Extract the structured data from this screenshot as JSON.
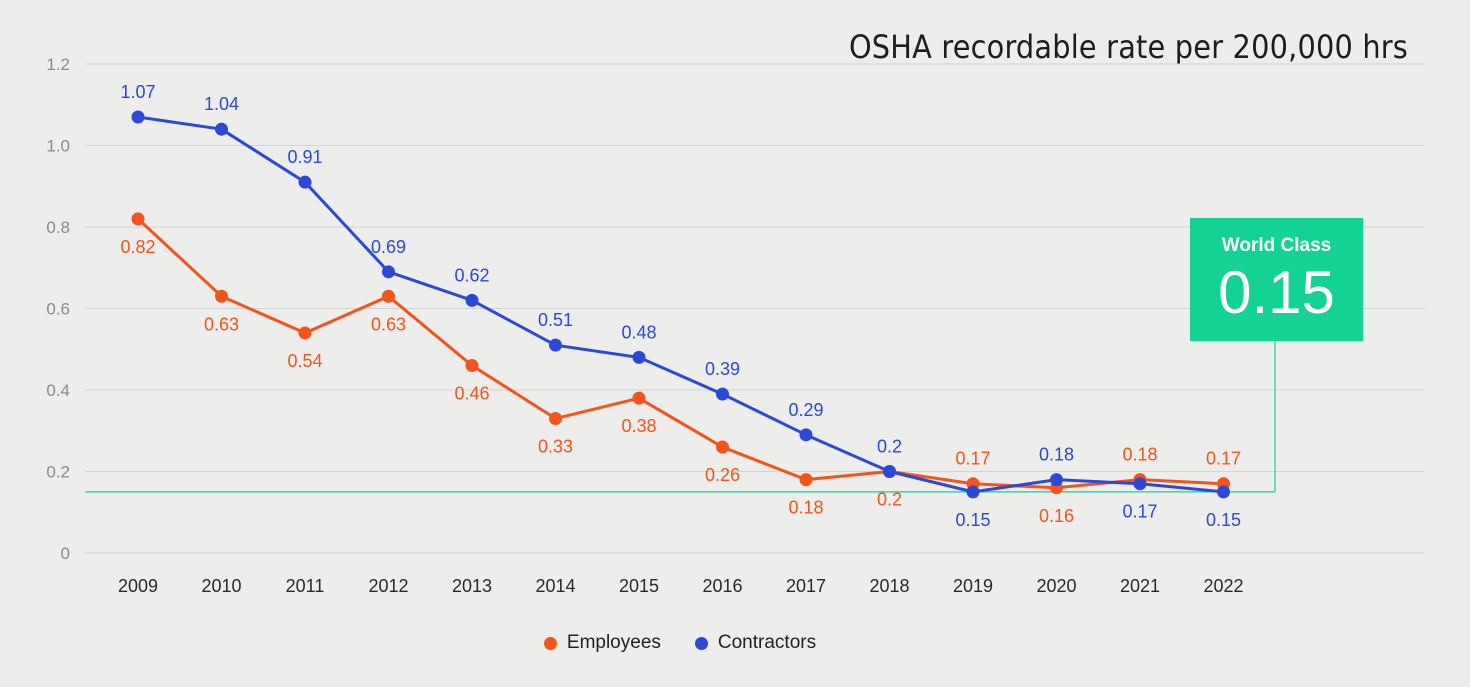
{
  "chart_data": {
    "type": "line",
    "title": "OSHA recordable rate per 200,000 hrs",
    "x": [
      "2009",
      "2010",
      "2011",
      "2012",
      "2013",
      "2014",
      "2015",
      "2016",
      "2017",
      "2018",
      "2019",
      "2020",
      "2021",
      "2022"
    ],
    "ylim": [
      0,
      1.2
    ],
    "yticks": [
      "0",
      "0.2",
      "0.4",
      "0.6",
      "0.8",
      "1.0",
      "1.2"
    ],
    "grid": true,
    "legend_position": "bottom",
    "series": [
      {
        "name": "Employees",
        "color": "#f2541b",
        "values": [
          0.82,
          0.63,
          0.54,
          0.63,
          0.46,
          0.33,
          0.38,
          0.26,
          0.18,
          0.2,
          0.17,
          0.16,
          0.18,
          0.17
        ],
        "labels": [
          "0.82",
          "0.63",
          "0.54",
          "0.63",
          "0.46",
          "0.33",
          "0.38",
          "0.26",
          "0.18",
          "0.2",
          "0.17",
          "0.16",
          "0.18",
          "0.17"
        ]
      },
      {
        "name": "Contractors",
        "color": "#2c48d6",
        "values": [
          1.07,
          1.04,
          0.91,
          0.69,
          0.62,
          0.51,
          0.48,
          0.39,
          0.29,
          0.2,
          0.15,
          0.18,
          0.17,
          0.15
        ],
        "labels": [
          "1.07",
          "1.04",
          "0.91",
          "0.69",
          "0.62",
          "0.51",
          "0.48",
          "0.39",
          "0.29",
          "0.2",
          "0.15",
          "0.18",
          "0.17",
          "0.15"
        ]
      }
    ],
    "reference_line": {
      "value": 0.15,
      "color": "#14d194",
      "label": "World Class",
      "value_label": "0.15"
    }
  }
}
